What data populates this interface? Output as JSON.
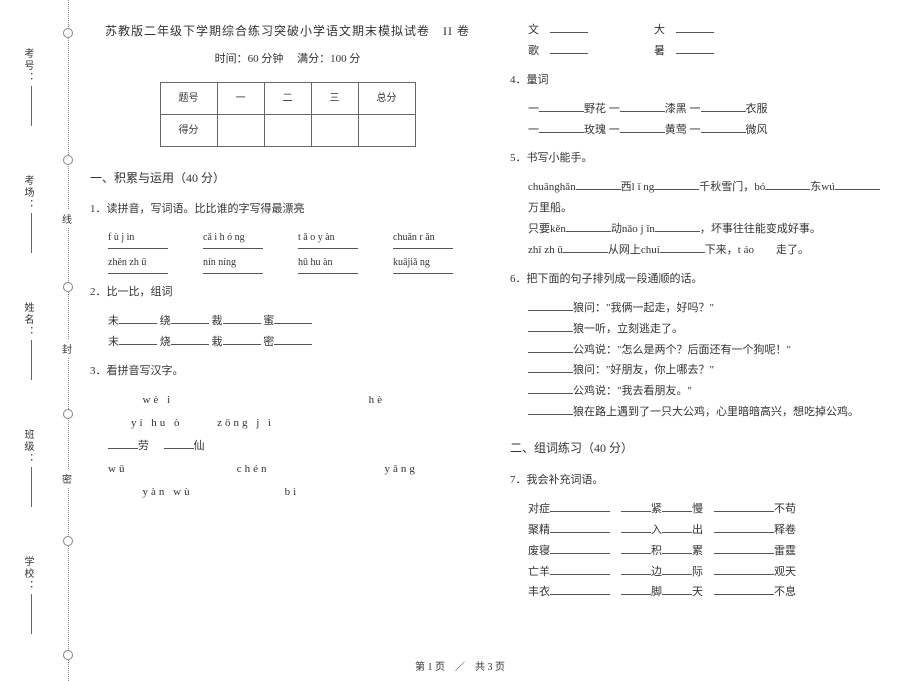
{
  "binding": {
    "labels": [
      "考号：",
      "考场：",
      "姓名：",
      "班级：",
      "学校："
    ],
    "seals": [
      "线",
      "封",
      "密"
    ]
  },
  "header": {
    "title": "苏教版二年级下学期综合练习突破小学语文期末模拟试卷",
    "volume": "II 卷",
    "time_label": "时间：",
    "time_value": "60 分钟",
    "full_label": "满分：",
    "full_value": "100 分"
  },
  "score_table": {
    "row1": [
      "题号",
      "一",
      "二",
      "三",
      "总分"
    ],
    "row2_label": "得分"
  },
  "section1": {
    "heading": "一、积累与运用（40 分）",
    "q1": {
      "num": "1．",
      "text": "读拼音，写词语。比比谁的字写得最漂亮",
      "row1": [
        "f ù j ìn",
        "cǎ i h ó ng",
        "t ǎ o y àn",
        "chuān r ǎn"
      ],
      "row2": [
        "zhēn zh ū",
        "nín níng",
        "hū hu àn",
        "kuājiǎ ng"
      ]
    },
    "q2": {
      "num": "2．",
      "text": "比一比，组词",
      "line1": [
        "未",
        "绕",
        "裁",
        "蜜"
      ],
      "line2": [
        "末",
        "烧",
        "栽",
        "密"
      ]
    },
    "q3": {
      "num": "3．",
      "text": "看拼音写汉字。",
      "items": {
        "wei": "wè i",
        "he": "hè",
        "yihuo": "yí hu ò",
        "zongji": "zōng j ì",
        "lao": "劳",
        "xian": "仙",
        "wu": "wū",
        "chen": "chén",
        "yang": "yāng",
        "yanwu": "yàn wù",
        "bi": "bì"
      }
    },
    "q3b": {
      "wen": "文",
      "da": "大",
      "ge": "歌",
      "shu": "暑"
    },
    "q4": {
      "num": "4．",
      "text": "量词",
      "l1a": "野花 一",
      "l1b": "漆黑 一",
      "l1c": "衣服",
      "l2a": "玫瑰 一",
      "l2b": "黄莺 一",
      "l2c": "微风"
    },
    "q5": {
      "num": "5．",
      "text": "书写小能手。",
      "l1": {
        "a": "chuānghǎn",
        "b": "西l ǐ ng",
        "c": "千秋雪门，bó",
        "d": "东wú"
      },
      "l2": "万里船。",
      "l3": {
        "a": "只要kěn",
        "b": "动nǎo j īn",
        "c": "，坏事往往能变成好事。"
      },
      "l4": {
        "a": "zhī zh ū",
        "b": "从网上chuí",
        "c": "下来，t áo",
        "d": "走了。"
      }
    },
    "q6": {
      "num": "6．",
      "text": "把下面的句子排列成一段通顺的话。",
      "lines": [
        "狼问：\"我俩一起走，好吗？\"",
        "狼一听，立刻逃走了。",
        "公鸡说：\"怎么是两个？后面还有一个狗呢！\"",
        "狼问：\"好朋友，你上哪去？\"",
        "公鸡说：\"我去看朋友。\"",
        "狼在路上遇到了一只大公鸡，心里暗暗高兴，想吃掉公鸡。"
      ]
    }
  },
  "section2": {
    "heading": "二、组词练习（40 分）",
    "q7": {
      "num": "7．",
      "text": "我会补充词语。",
      "rows": [
        [
          "对症",
          "",
          "紧",
          "慢",
          "",
          "不苟"
        ],
        [
          "聚精",
          "",
          "入",
          "出",
          "",
          "释卷"
        ],
        [
          "废寝",
          "",
          "积",
          "累",
          "",
          "雷霆"
        ],
        [
          "亡羊",
          "",
          "边",
          "际",
          "",
          "观天"
        ],
        [
          "丰衣",
          "",
          "脚",
          "天",
          "",
          "不息"
        ]
      ]
    }
  },
  "footer": "第 1 页　／　共 3 页"
}
